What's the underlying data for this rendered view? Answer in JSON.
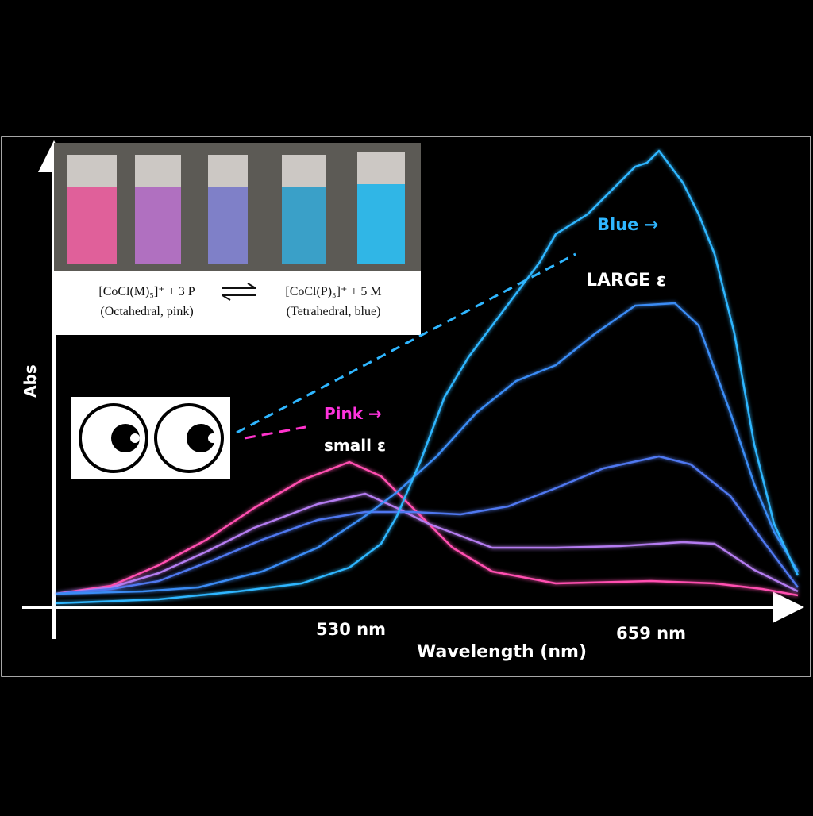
{
  "y_axis": {
    "label": "Abs"
  },
  "x_axis": {
    "label": "Wavelength (nm)",
    "markers": [
      "530 nm",
      "659 nm"
    ]
  },
  "annotations": {
    "blue": "Blue →",
    "large": "LARGE ε",
    "pink": "Pink →",
    "small": "small ε"
  },
  "equation": {
    "left": "[CoCl(M)₅]⁺ + 3 P",
    "left_note": "(Octahedral, pink)",
    "right": "[CoCl(P)₃]⁺ + 5 M",
    "right_note": "(Tetrahedral, blue)"
  }
}
